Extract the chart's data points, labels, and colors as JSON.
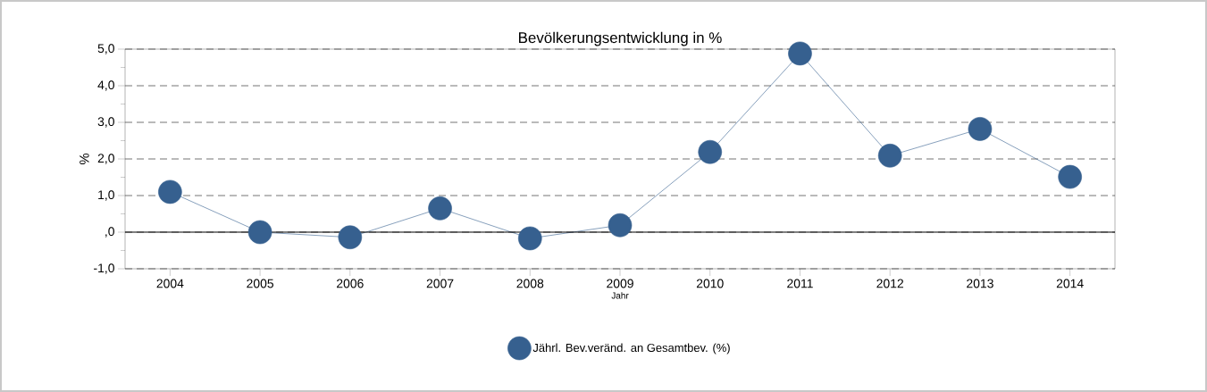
{
  "chart_data": {
    "type": "line",
    "title": "Bevölkerungsentwicklung in %",
    "xlabel": "Jahr",
    "ylabel": "%",
    "categories": [
      "2004",
      "2005",
      "2006",
      "2007",
      "2008",
      "2009",
      "2010",
      "2011",
      "2012",
      "2013",
      "2014"
    ],
    "series": [
      {
        "name": "Jährl. Bev.veränd. an Gesamtbev. (%)",
        "color": "#36608f",
        "values": [
          1.1,
          0.0,
          -0.14,
          0.65,
          -0.17,
          0.19,
          2.19,
          4.88,
          2.09,
          2.82,
          1.51
        ]
      }
    ],
    "ylim": [
      -1,
      5
    ],
    "yticks": [
      {
        "value": -1,
        "label": "-1,0"
      },
      {
        "value": -0.5,
        "label": null
      },
      {
        "value": 0,
        "label": ",0"
      },
      {
        "value": 0.5,
        "label": null
      },
      {
        "value": 1,
        "label": "1,0"
      },
      {
        "value": 1.5,
        "label": null
      },
      {
        "value": 2,
        "label": "2,0"
      },
      {
        "value": 2.5,
        "label": null
      },
      {
        "value": 3,
        "label": "3,0"
      },
      {
        "value": 3.5,
        "label": null
      },
      {
        "value": 4,
        "label": "4,0"
      },
      {
        "value": 4.5,
        "label": null
      },
      {
        "value": 5,
        "label": "5,0"
      }
    ],
    "ref_lines": [
      {
        "axis": "y",
        "value": 0,
        "color": "#000000"
      }
    ],
    "grid": "y",
    "legend": "bottom",
    "marker": "circle",
    "line_style": "solid"
  }
}
